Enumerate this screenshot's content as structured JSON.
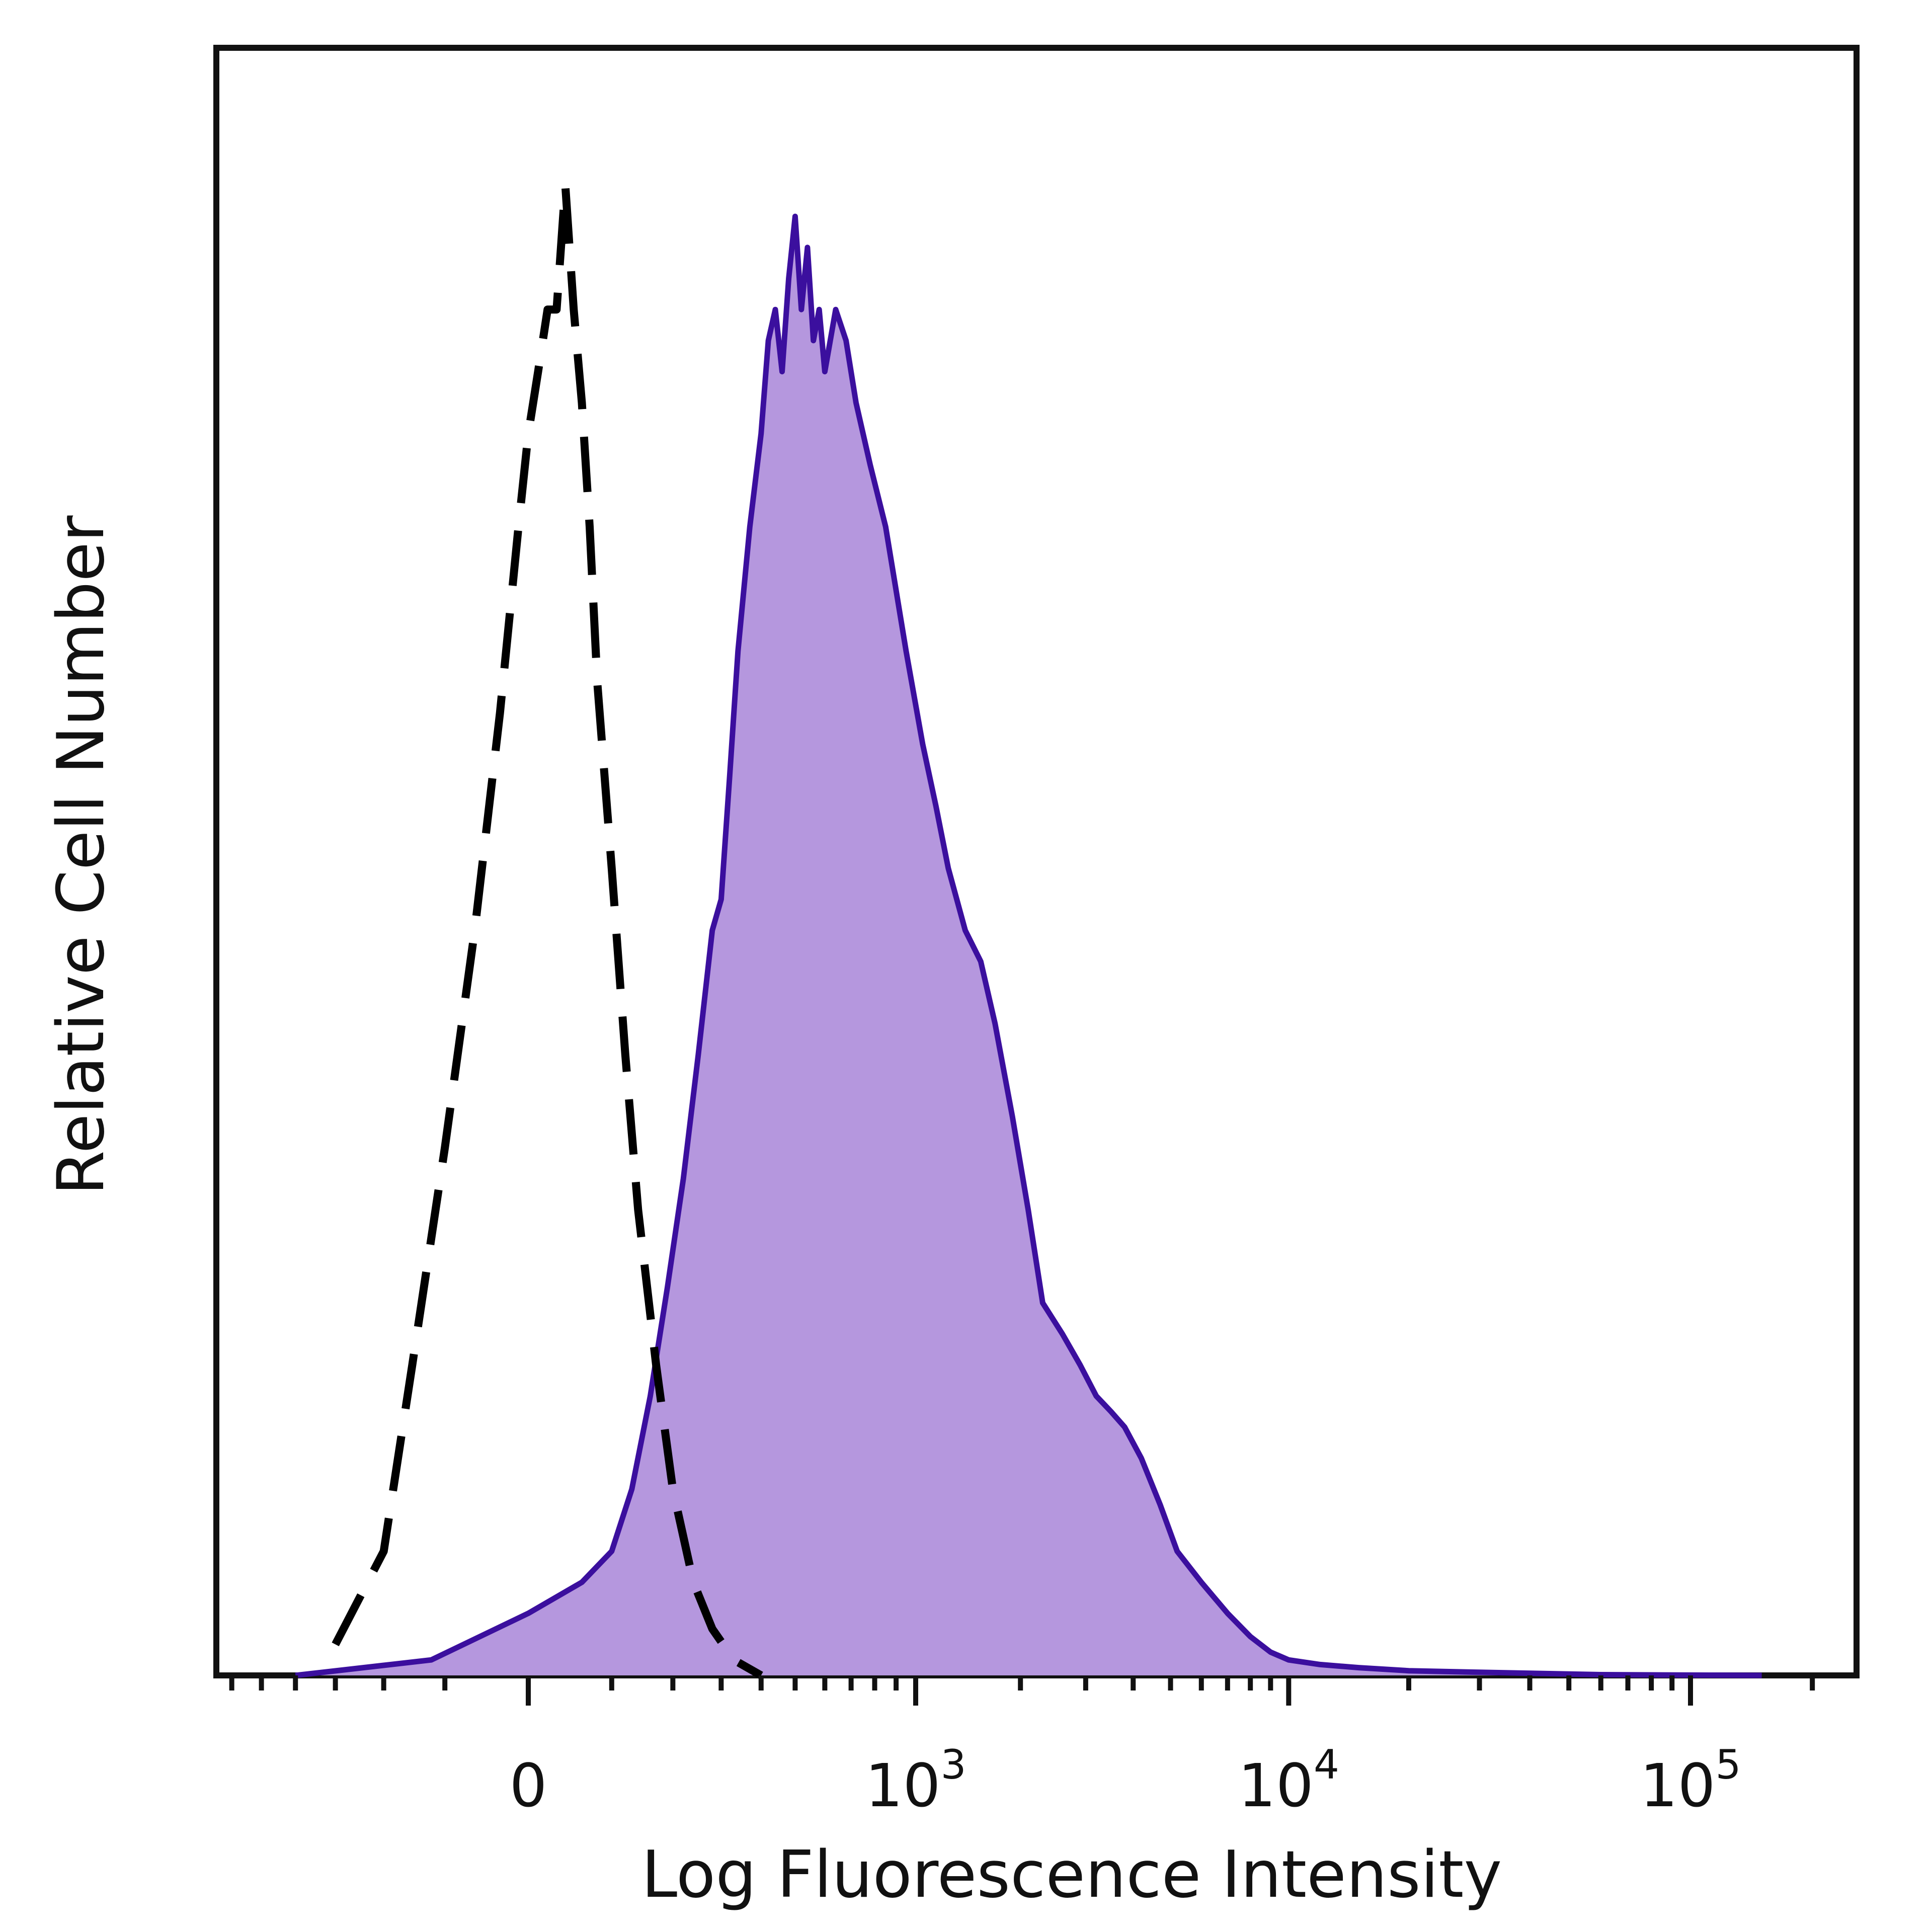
{
  "chart_data": {
    "type": "area",
    "xlabel": "Log Fluorescence Intensity",
    "ylabel": "Relative Cell Number",
    "x_scale": "biexponential",
    "x_ticks": [
      {
        "value": 0,
        "base": "0",
        "exp": ""
      },
      {
        "value": 1000,
        "base": "10",
        "exp": "3"
      },
      {
        "value": 10000,
        "base": "10",
        "exp": "4"
      },
      {
        "value": 100000,
        "base": "10",
        "exp": "5"
      }
    ],
    "xlim": [
      -2000,
      260000
    ],
    "ylim": [
      0,
      100
    ],
    "grid": false,
    "legend": "none",
    "series": [
      {
        "style": "filled",
        "color": "#3b0f9e",
        "fill": "#b597de",
        "points": [
          [
            -400,
            0
          ],
          [
            -120,
            1
          ],
          [
            0,
            4
          ],
          [
            60,
            6
          ],
          [
            100,
            8
          ],
          [
            130,
            12
          ],
          [
            160,
            18
          ],
          [
            190,
            25
          ],
          [
            220,
            32
          ],
          [
            250,
            40
          ],
          [
            280,
            48
          ],
          [
            300,
            50
          ],
          [
            320,
            58
          ],
          [
            340,
            66
          ],
          [
            370,
            74
          ],
          [
            400,
            80
          ],
          [
            420,
            86
          ],
          [
            440,
            88
          ],
          [
            460,
            84
          ],
          [
            480,
            90
          ],
          [
            500,
            94
          ],
          [
            520,
            88
          ],
          [
            540,
            92
          ],
          [
            560,
            86
          ],
          [
            580,
            88
          ],
          [
            600,
            84
          ],
          [
            640,
            88
          ],
          [
            680,
            86
          ],
          [
            720,
            82
          ],
          [
            780,
            78
          ],
          [
            850,
            74
          ],
          [
            950,
            66
          ],
          [
            1050,
            60
          ],
          [
            1150,
            56
          ],
          [
            1250,
            52
          ],
          [
            1400,
            48
          ],
          [
            1550,
            46
          ],
          [
            1700,
            42
          ],
          [
            1900,
            36
          ],
          [
            2100,
            30
          ],
          [
            2300,
            24
          ],
          [
            2600,
            22
          ],
          [
            2900,
            20
          ],
          [
            3200,
            18
          ],
          [
            3500,
            17
          ],
          [
            3800,
            16
          ],
          [
            4200,
            14
          ],
          [
            4700,
            11
          ],
          [
            5200,
            8
          ],
          [
            6000,
            6
          ],
          [
            7000,
            4
          ],
          [
            8000,
            2.5
          ],
          [
            9000,
            1.5
          ],
          [
            10000,
            1
          ],
          [
            12000,
            0.7
          ],
          [
            15000,
            0.5
          ],
          [
            20000,
            0.3
          ],
          [
            30000,
            0.2
          ],
          [
            60000,
            0.05
          ],
          [
            150000,
            0
          ]
        ]
      },
      {
        "style": "dashed",
        "color": "#000000",
        "points": [
          [
            -300,
            2
          ],
          [
            -200,
            8
          ],
          [
            -150,
            20
          ],
          [
            -100,
            34
          ],
          [
            -60,
            48
          ],
          [
            -30,
            62
          ],
          [
            -10,
            74
          ],
          [
            0,
            80
          ],
          [
            10,
            84
          ],
          [
            20,
            88
          ],
          [
            30,
            88
          ],
          [
            40,
            96
          ],
          [
            50,
            88
          ],
          [
            60,
            82
          ],
          [
            70,
            74
          ],
          [
            80,
            64
          ],
          [
            100,
            52
          ],
          [
            120,
            40
          ],
          [
            140,
            30
          ],
          [
            170,
            20
          ],
          [
            200,
            12
          ],
          [
            240,
            6
          ],
          [
            280,
            3
          ],
          [
            330,
            1
          ],
          [
            400,
            0
          ]
        ]
      }
    ]
  }
}
